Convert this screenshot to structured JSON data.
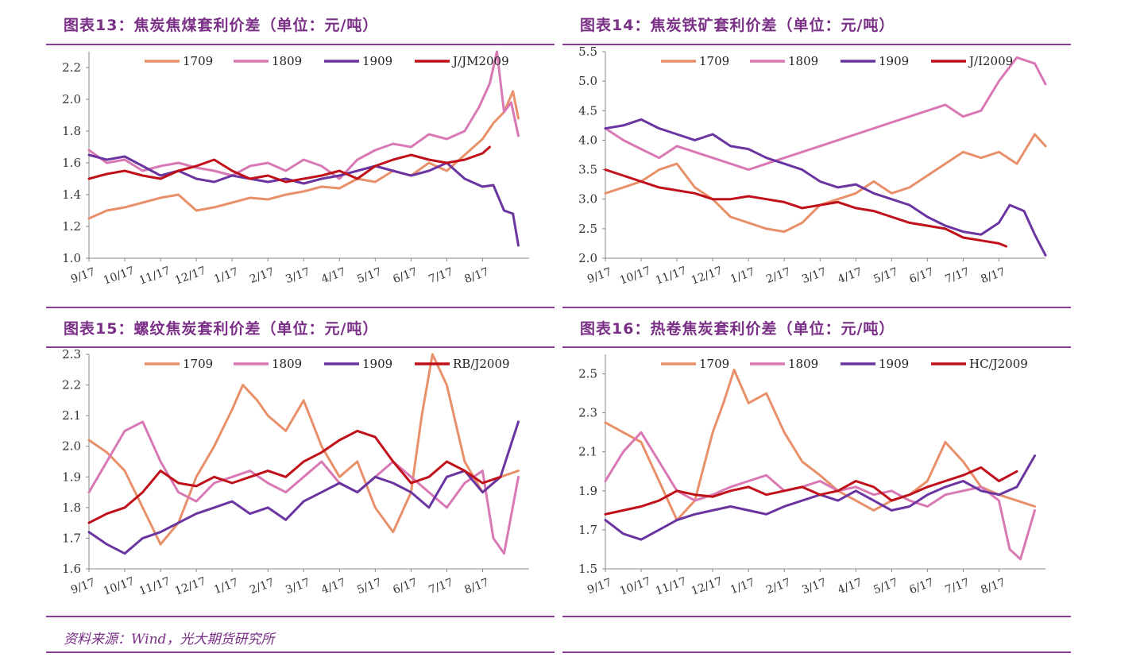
{
  "colors": {
    "c1709": "#e8906a",
    "c1809": "#d878b4",
    "c1909": "#6a35a0",
    "cSpread": "#c0101a",
    "accent": "#8c3f99"
  },
  "source": "资料来源：Wind，光大期货研究所",
  "chart_data": [
    {
      "id": "p13",
      "type": "line",
      "title": "图表13：焦炭焦煤套利价差（单位：元/吨）",
      "ylim": [
        1.0,
        2.3
      ],
      "yticks": [
        "1.0",
        "1.2",
        "1.4",
        "1.6",
        "1.8",
        "2.0",
        "2.2"
      ],
      "yvals": [
        1.0,
        1.2,
        1.4,
        1.6,
        1.8,
        2.0,
        2.2
      ],
      "xticks": [
        "9/17",
        "10/17",
        "11/17",
        "12/17",
        "1/17",
        "2/17",
        "3/17",
        "4/17",
        "5/17",
        "6/17",
        "7/17",
        "8/17"
      ],
      "series": [
        {
          "name": "1709",
          "color": "#e8906a",
          "x": [
            0,
            0.5,
            1,
            1.5,
            2,
            2.5,
            3,
            3.5,
            4,
            4.5,
            5,
            5.5,
            6,
            6.5,
            7,
            7.5,
            8,
            8.5,
            9,
            9.5,
            10,
            10.5,
            11,
            11.3,
            11.6,
            11.85,
            12
          ],
          "values": [
            1.25,
            1.3,
            1.32,
            1.35,
            1.38,
            1.4,
            1.3,
            1.32,
            1.35,
            1.38,
            1.37,
            1.4,
            1.42,
            1.45,
            1.44,
            1.5,
            1.48,
            1.55,
            1.52,
            1.6,
            1.55,
            1.65,
            1.75,
            1.85,
            1.92,
            2.05,
            1.88
          ]
        },
        {
          "name": "1809",
          "color": "#d878b4",
          "x": [
            0,
            0.5,
            1,
            1.5,
            2,
            2.5,
            3,
            3.5,
            4,
            4.5,
            5,
            5.5,
            6,
            6.5,
            7,
            7.5,
            8,
            8.5,
            9,
            9.5,
            10,
            10.5,
            10.9,
            11.2,
            11.4,
            11.6,
            11.8,
            12
          ],
          "values": [
            1.68,
            1.6,
            1.62,
            1.55,
            1.58,
            1.6,
            1.57,
            1.55,
            1.52,
            1.58,
            1.6,
            1.55,
            1.62,
            1.58,
            1.5,
            1.62,
            1.68,
            1.72,
            1.7,
            1.78,
            1.75,
            1.8,
            1.95,
            2.1,
            2.3,
            1.92,
            1.98,
            1.77
          ]
        },
        {
          "name": "1909",
          "color": "#6a35a0",
          "x": [
            0,
            0.5,
            1,
            1.5,
            2,
            2.5,
            3,
            3.5,
            4,
            4.5,
            5,
            5.5,
            6,
            6.5,
            7,
            7.5,
            8,
            8.5,
            9,
            9.5,
            10,
            10.5,
            11,
            11.3,
            11.6,
            11.85,
            12
          ],
          "values": [
            1.65,
            1.62,
            1.64,
            1.58,
            1.52,
            1.55,
            1.5,
            1.48,
            1.52,
            1.5,
            1.48,
            1.5,
            1.47,
            1.5,
            1.52,
            1.55,
            1.58,
            1.55,
            1.52,
            1.55,
            1.6,
            1.5,
            1.45,
            1.46,
            1.3,
            1.28,
            1.08
          ]
        },
        {
          "name": "J/JM2009",
          "color": "#c0101a",
          "x": [
            0,
            0.5,
            1,
            1.5,
            2,
            2.5,
            3,
            3.5,
            4,
            4.5,
            5,
            5.5,
            6,
            6.5,
            7,
            7.5,
            8,
            8.5,
            9,
            9.5,
            10,
            10.5,
            11,
            11.2
          ],
          "values": [
            1.5,
            1.53,
            1.55,
            1.52,
            1.5,
            1.55,
            1.58,
            1.62,
            1.55,
            1.5,
            1.52,
            1.48,
            1.5,
            1.52,
            1.55,
            1.5,
            1.58,
            1.62,
            1.65,
            1.62,
            1.6,
            1.62,
            1.66,
            1.7
          ]
        }
      ]
    },
    {
      "id": "p14",
      "type": "line",
      "title": "图表14：焦炭铁矿套利价差（单位：元/吨）",
      "ylim": [
        2.0,
        5.5
      ],
      "yticks": [
        "2.0",
        "2.5",
        "3.0",
        "3.5",
        "4.0",
        "4.5",
        "5.0",
        "5.5"
      ],
      "yvals": [
        2.0,
        2.5,
        3.0,
        3.5,
        4.0,
        4.5,
        5.0,
        5.5
      ],
      "xticks": [
        "9/17",
        "10/17",
        "11/17",
        "12/17",
        "1/17",
        "2/17",
        "3/17",
        "4/17",
        "5/17",
        "6/17",
        "7/17",
        "8/17"
      ],
      "series": [
        {
          "name": "1709",
          "color": "#e8906a",
          "x": [
            0,
            0.5,
            1,
            1.5,
            2,
            2.5,
            3,
            3.5,
            4,
            4.5,
            5,
            5.5,
            6,
            6.5,
            7,
            7.5,
            8,
            8.5,
            9,
            9.5,
            10,
            10.5,
            11,
            11.5,
            12,
            12.3
          ],
          "values": [
            3.1,
            3.2,
            3.3,
            3.5,
            3.6,
            3.2,
            3.0,
            2.7,
            2.6,
            2.5,
            2.45,
            2.6,
            2.9,
            3.0,
            3.1,
            3.3,
            3.1,
            3.2,
            3.4,
            3.6,
            3.8,
            3.7,
            3.8,
            3.6,
            4.1,
            3.9
          ]
        },
        {
          "name": "1809",
          "color": "#d878b4",
          "x": [
            0,
            0.5,
            1,
            1.5,
            2,
            2.5,
            3,
            3.5,
            4,
            4.5,
            5,
            5.5,
            6,
            6.5,
            7,
            7.5,
            8,
            8.5,
            9,
            9.5,
            10,
            10.5,
            11,
            11.5,
            12,
            12.3
          ],
          "values": [
            4.2,
            4.0,
            3.85,
            3.7,
            3.9,
            3.8,
            3.7,
            3.6,
            3.5,
            3.6,
            3.7,
            3.8,
            3.9,
            4.0,
            4.1,
            4.2,
            4.3,
            4.4,
            4.5,
            4.6,
            4.4,
            4.5,
            5.0,
            5.4,
            5.3,
            4.95
          ]
        },
        {
          "name": "1909",
          "color": "#6a35a0",
          "x": [
            0,
            0.5,
            1,
            1.5,
            2,
            2.5,
            3,
            3.5,
            4,
            4.5,
            5,
            5.5,
            6,
            6.5,
            7,
            7.5,
            8,
            8.5,
            9,
            9.5,
            10,
            10.5,
            11,
            11.3,
            11.7,
            12,
            12.3
          ],
          "values": [
            4.2,
            4.25,
            4.35,
            4.2,
            4.1,
            4.0,
            4.1,
            3.9,
            3.85,
            3.7,
            3.6,
            3.5,
            3.3,
            3.2,
            3.25,
            3.1,
            3.0,
            2.9,
            2.7,
            2.55,
            2.45,
            2.4,
            2.6,
            2.9,
            2.8,
            2.4,
            2.05
          ]
        },
        {
          "name": "J/I2009",
          "color": "#c0101a",
          "x": [
            0,
            0.5,
            1,
            1.5,
            2,
            2.5,
            3,
            3.5,
            4,
            4.5,
            5,
            5.5,
            6,
            6.5,
            7,
            7.5,
            8,
            8.5,
            9,
            9.5,
            10,
            10.5,
            11,
            11.2
          ],
          "values": [
            3.5,
            3.4,
            3.3,
            3.2,
            3.15,
            3.1,
            3.0,
            3.0,
            3.05,
            3.0,
            2.95,
            2.85,
            2.9,
            2.95,
            2.85,
            2.8,
            2.7,
            2.6,
            2.55,
            2.5,
            2.35,
            2.3,
            2.25,
            2.2
          ]
        }
      ]
    },
    {
      "id": "p15",
      "type": "line",
      "title": "图表15：螺纹焦炭套利价差（单位：元/吨）",
      "ylim": [
        1.6,
        2.3
      ],
      "yticks": [
        "1.6",
        "1.7",
        "1.8",
        "1.9",
        "2.0",
        "2.1",
        "2.2",
        "2.3"
      ],
      "yvals": [
        1.6,
        1.7,
        1.8,
        1.9,
        2.0,
        2.1,
        2.2,
        2.3
      ],
      "xticks": [
        "9/17",
        "10/17",
        "11/17",
        "12/17",
        "1/17",
        "2/17",
        "3/17",
        "4/17",
        "5/17",
        "6/17",
        "7/17",
        "8/17"
      ],
      "series": [
        {
          "name": "1709",
          "color": "#e8906a",
          "x": [
            0,
            0.5,
            1,
            1.5,
            2,
            2.5,
            3,
            3.5,
            4,
            4.3,
            4.7,
            5,
            5.5,
            6,
            6.5,
            7,
            7.5,
            8,
            8.5,
            9,
            9.3,
            9.6,
            10,
            10.5,
            11,
            11.5,
            12
          ],
          "values": [
            2.02,
            1.98,
            1.92,
            1.8,
            1.68,
            1.75,
            1.9,
            2.0,
            2.12,
            2.2,
            2.15,
            2.1,
            2.05,
            2.15,
            2.0,
            1.9,
            1.95,
            1.8,
            1.72,
            1.85,
            2.1,
            2.3,
            2.2,
            1.95,
            1.85,
            1.9,
            1.92
          ]
        },
        {
          "name": "1809",
          "color": "#d878b4",
          "x": [
            0,
            0.5,
            1,
            1.5,
            2,
            2.5,
            3,
            3.5,
            4,
            4.5,
            5,
            5.5,
            6,
            6.5,
            7,
            7.5,
            8,
            8.5,
            9,
            9.5,
            10,
            10.5,
            11,
            11.3,
            11.6,
            12
          ],
          "values": [
            1.85,
            1.95,
            2.05,
            2.08,
            1.95,
            1.85,
            1.82,
            1.88,
            1.9,
            1.92,
            1.88,
            1.85,
            1.9,
            1.95,
            1.88,
            1.85,
            1.9,
            1.95,
            1.9,
            1.85,
            1.8,
            1.88,
            1.92,
            1.7,
            1.65,
            1.9
          ]
        },
        {
          "name": "1909",
          "color": "#6a35a0",
          "x": [
            0,
            0.5,
            1,
            1.5,
            2,
            2.5,
            3,
            3.5,
            4,
            4.5,
            5,
            5.5,
            6,
            6.5,
            7,
            7.5,
            8,
            8.5,
            9,
            9.5,
            10,
            10.5,
            11,
            11.5,
            12
          ],
          "values": [
            1.72,
            1.68,
            1.65,
            1.7,
            1.72,
            1.75,
            1.78,
            1.8,
            1.82,
            1.78,
            1.8,
            1.76,
            1.82,
            1.85,
            1.88,
            1.85,
            1.9,
            1.88,
            1.85,
            1.8,
            1.9,
            1.92,
            1.85,
            1.9,
            2.08
          ]
        },
        {
          "name": "RB/J2009",
          "color": "#c0101a",
          "x": [
            0,
            0.5,
            1,
            1.5,
            2,
            2.5,
            3,
            3.5,
            4,
            4.5,
            5,
            5.5,
            6,
            6.5,
            7,
            7.5,
            8,
            8.5,
            9,
            9.5,
            10,
            10.5,
            11,
            11.5
          ],
          "values": [
            1.75,
            1.78,
            1.8,
            1.85,
            1.92,
            1.88,
            1.87,
            1.9,
            1.88,
            1.9,
            1.92,
            1.9,
            1.95,
            1.98,
            2.02,
            2.05,
            2.03,
            1.95,
            1.88,
            1.9,
            1.95,
            1.92,
            1.88,
            1.9
          ]
        }
      ]
    },
    {
      "id": "p16",
      "type": "line",
      "title": "图表16：热卷焦炭套利价差（单位：元/吨）",
      "ylim": [
        1.5,
        2.6
      ],
      "yticks": [
        "1.5",
        "1.7",
        "1.9",
        "2.1",
        "2.3",
        "2.5"
      ],
      "yvals": [
        1.5,
        1.7,
        1.9,
        2.1,
        2.3,
        2.5
      ],
      "xticks": [
        "9/17",
        "10/17",
        "11/17",
        "12/17",
        "1/17",
        "2/17",
        "3/17",
        "4/17",
        "5/17",
        "6/17",
        "7/17",
        "8/17"
      ],
      "series": [
        {
          "name": "1709",
          "color": "#e8906a",
          "x": [
            0,
            0.5,
            1,
            1.5,
            2,
            2.5,
            3,
            3.3,
            3.6,
            4,
            4.5,
            5,
            5.5,
            6,
            6.5,
            7,
            7.5,
            8,
            8.5,
            9,
            9.5,
            10,
            10.5,
            11,
            11.5,
            12
          ],
          "values": [
            2.25,
            2.2,
            2.15,
            1.95,
            1.75,
            1.85,
            2.2,
            2.35,
            2.52,
            2.35,
            2.4,
            2.2,
            2.05,
            1.98,
            1.9,
            1.85,
            1.8,
            1.85,
            1.88,
            1.95,
            2.15,
            2.05,
            1.92,
            1.88,
            1.85,
            1.82
          ]
        },
        {
          "name": "1809",
          "color": "#d878b4",
          "x": [
            0,
            0.5,
            1,
            1.5,
            2,
            2.5,
            3,
            3.5,
            4,
            4.5,
            5,
            5.5,
            6,
            6.5,
            7,
            7.5,
            8,
            8.5,
            9,
            9.5,
            10,
            10.5,
            11,
            11.3,
            11.6,
            12
          ],
          "values": [
            1.95,
            2.1,
            2.2,
            2.05,
            1.9,
            1.85,
            1.88,
            1.92,
            1.95,
            1.98,
            1.9,
            1.92,
            1.95,
            1.9,
            1.92,
            1.88,
            1.9,
            1.85,
            1.82,
            1.88,
            1.9,
            1.92,
            1.85,
            1.6,
            1.55,
            1.8
          ]
        },
        {
          "name": "1909",
          "color": "#6a35a0",
          "x": [
            0,
            0.5,
            1,
            1.5,
            2,
            2.5,
            3,
            3.5,
            4,
            4.5,
            5,
            5.5,
            6,
            6.5,
            7,
            7.5,
            8,
            8.5,
            9,
            9.5,
            10,
            10.5,
            11,
            11.5,
            12
          ],
          "values": [
            1.75,
            1.68,
            1.65,
            1.7,
            1.75,
            1.78,
            1.8,
            1.82,
            1.8,
            1.78,
            1.82,
            1.85,
            1.88,
            1.85,
            1.9,
            1.85,
            1.8,
            1.82,
            1.88,
            1.92,
            1.95,
            1.9,
            1.88,
            1.92,
            2.08
          ]
        },
        {
          "name": "HC/J2009",
          "color": "#c0101a",
          "x": [
            0,
            0.5,
            1,
            1.5,
            2,
            2.5,
            3,
            3.5,
            4,
            4.5,
            5,
            5.5,
            6,
            6.5,
            7,
            7.5,
            8,
            8.5,
            9,
            9.5,
            10,
            10.5,
            11,
            11.5
          ],
          "values": [
            1.78,
            1.8,
            1.82,
            1.85,
            1.9,
            1.88,
            1.87,
            1.9,
            1.92,
            1.88,
            1.9,
            1.92,
            1.88,
            1.9,
            1.95,
            1.92,
            1.85,
            1.88,
            1.92,
            1.95,
            1.98,
            2.02,
            1.95,
            2.0
          ]
        }
      ]
    }
  ]
}
